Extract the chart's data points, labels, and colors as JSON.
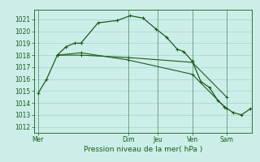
{
  "background_color": "#cceee8",
  "grid_color": "#99cccc",
  "line_color": "#1a5c1a",
  "title": "Pression niveau de la mer( hPa )",
  "ylim": [
    1011.5,
    1021.8
  ],
  "yticks": [
    1012,
    1013,
    1014,
    1015,
    1016,
    1017,
    1018,
    1019,
    1020,
    1021
  ],
  "xtick_labels": [
    "Mer",
    "Dim",
    "Jeu",
    "Ven",
    "Sam"
  ],
  "xtick_positions": [
    0.0,
    0.42,
    0.56,
    0.72,
    0.88
  ],
  "xlim": [
    -0.02,
    1.0
  ],
  "line1_x": [
    0.0,
    0.04,
    0.09,
    0.13,
    0.17,
    0.2,
    0.28,
    0.37,
    0.43,
    0.49,
    0.55,
    0.6,
    0.65,
    0.68,
    0.72,
    0.76,
    0.8,
    0.84,
    0.87,
    0.91,
    0.95,
    0.99
  ],
  "line1_y": [
    1014.8,
    1016.0,
    1018.0,
    1018.7,
    1019.0,
    1019.0,
    1020.7,
    1020.9,
    1021.3,
    1021.1,
    1020.2,
    1019.5,
    1018.5,
    1018.3,
    1017.5,
    1015.8,
    1015.3,
    1014.2,
    1013.7,
    1013.2,
    1013.0,
    1013.5
  ],
  "line2_x": [
    0.09,
    0.2,
    0.42,
    0.72,
    0.88
  ],
  "line2_y": [
    1018.0,
    1018.0,
    1017.8,
    1017.4,
    1014.5
  ],
  "line3_x": [
    0.09,
    0.2,
    0.42,
    0.72,
    0.88
  ],
  "line3_y": [
    1018.0,
    1018.2,
    1017.6,
    1016.4,
    1013.5
  ],
  "figsize": [
    3.2,
    2.0
  ],
  "dpi": 100
}
